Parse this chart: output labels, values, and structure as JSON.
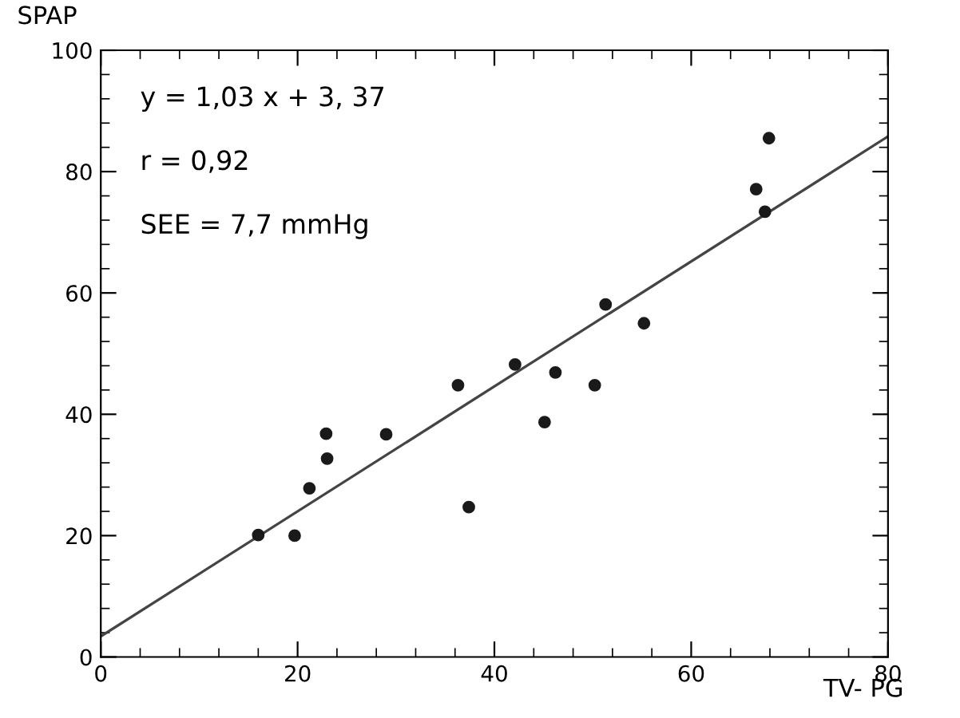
{
  "chart_data": {
    "type": "scatter",
    "xlabel": "TV- PG",
    "ylabel": "SPAP",
    "xlim": [
      0,
      80
    ],
    "ylim": [
      0,
      100
    ],
    "xticks": [
      0,
      20,
      40,
      60,
      80
    ],
    "yticks": [
      0,
      20,
      40,
      60,
      80,
      100
    ],
    "grid": false,
    "annotations": [
      "y = 1,03 x + 3, 37",
      "r = 0,92",
      "SEE = 7,7 mmHg"
    ],
    "series": [
      {
        "color": "#1a1a1a",
        "marker": "circle",
        "x": [
          16.0,
          19.7,
          21.2,
          22.9,
          23.0,
          29.0,
          36.3,
          37.4,
          42.1,
          45.1,
          46.2,
          50.2,
          51.3,
          55.2,
          66.6,
          67.5,
          67.9
        ],
        "values": [
          20.1,
          20.0,
          27.8,
          36.8,
          32.7,
          36.7,
          44.8,
          24.7,
          48.2,
          38.7,
          46.9,
          44.8,
          58.1,
          55.0,
          77.1,
          73.4,
          85.5
        ]
      },
      {
        "type": "line",
        "color": "#444444",
        "line_style": "solid",
        "marker": "none",
        "x": [
          0,
          80
        ],
        "values": [
          3.4,
          85.8
        ]
      }
    ]
  }
}
